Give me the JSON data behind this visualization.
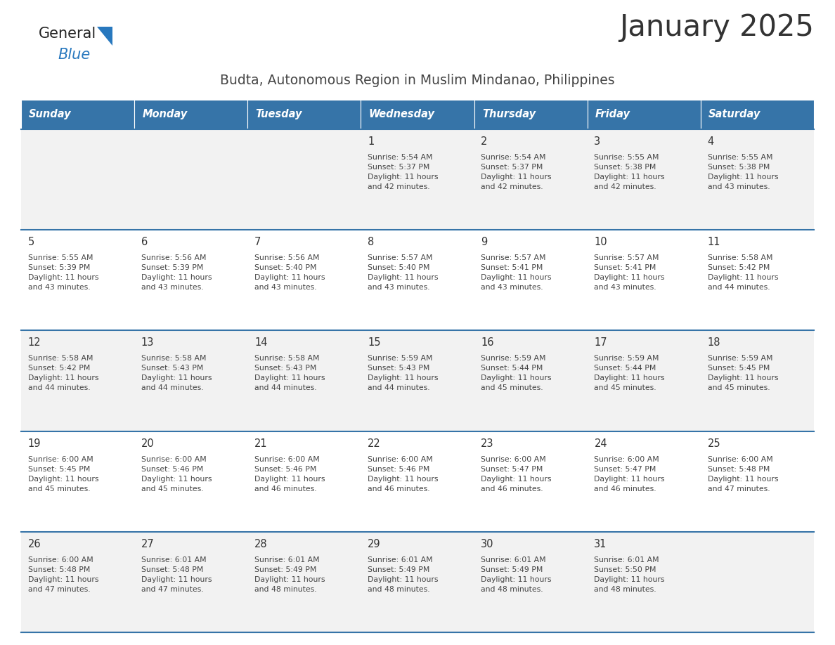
{
  "title": "January 2025",
  "subtitle": "Budta, Autonomous Region in Muslim Mindanao, Philippines",
  "header_bg_color": "#3674a8",
  "header_text_color": "#ffffff",
  "header_days": [
    "Sunday",
    "Monday",
    "Tuesday",
    "Wednesday",
    "Thursday",
    "Friday",
    "Saturday"
  ],
  "row_bg_colors": [
    "#f2f2f2",
    "#ffffff",
    "#f2f2f2",
    "#ffffff",
    "#f2f2f2"
  ],
  "cell_text_color": "#444444",
  "day_num_color": "#333333",
  "divider_color": "#3674a8",
  "logo_general_color": "#222222",
  "logo_blue_color": "#2878be",
  "background_color": "#ffffff",
  "calendar": [
    [
      {
        "day": "",
        "info": ""
      },
      {
        "day": "",
        "info": ""
      },
      {
        "day": "",
        "info": ""
      },
      {
        "day": "1",
        "info": "Sunrise: 5:54 AM\nSunset: 5:37 PM\nDaylight: 11 hours\nand 42 minutes."
      },
      {
        "day": "2",
        "info": "Sunrise: 5:54 AM\nSunset: 5:37 PM\nDaylight: 11 hours\nand 42 minutes."
      },
      {
        "day": "3",
        "info": "Sunrise: 5:55 AM\nSunset: 5:38 PM\nDaylight: 11 hours\nand 42 minutes."
      },
      {
        "day": "4",
        "info": "Sunrise: 5:55 AM\nSunset: 5:38 PM\nDaylight: 11 hours\nand 43 minutes."
      }
    ],
    [
      {
        "day": "5",
        "info": "Sunrise: 5:55 AM\nSunset: 5:39 PM\nDaylight: 11 hours\nand 43 minutes."
      },
      {
        "day": "6",
        "info": "Sunrise: 5:56 AM\nSunset: 5:39 PM\nDaylight: 11 hours\nand 43 minutes."
      },
      {
        "day": "7",
        "info": "Sunrise: 5:56 AM\nSunset: 5:40 PM\nDaylight: 11 hours\nand 43 minutes."
      },
      {
        "day": "8",
        "info": "Sunrise: 5:57 AM\nSunset: 5:40 PM\nDaylight: 11 hours\nand 43 minutes."
      },
      {
        "day": "9",
        "info": "Sunrise: 5:57 AM\nSunset: 5:41 PM\nDaylight: 11 hours\nand 43 minutes."
      },
      {
        "day": "10",
        "info": "Sunrise: 5:57 AM\nSunset: 5:41 PM\nDaylight: 11 hours\nand 43 minutes."
      },
      {
        "day": "11",
        "info": "Sunrise: 5:58 AM\nSunset: 5:42 PM\nDaylight: 11 hours\nand 44 minutes."
      }
    ],
    [
      {
        "day": "12",
        "info": "Sunrise: 5:58 AM\nSunset: 5:42 PM\nDaylight: 11 hours\nand 44 minutes."
      },
      {
        "day": "13",
        "info": "Sunrise: 5:58 AM\nSunset: 5:43 PM\nDaylight: 11 hours\nand 44 minutes."
      },
      {
        "day": "14",
        "info": "Sunrise: 5:58 AM\nSunset: 5:43 PM\nDaylight: 11 hours\nand 44 minutes."
      },
      {
        "day": "15",
        "info": "Sunrise: 5:59 AM\nSunset: 5:43 PM\nDaylight: 11 hours\nand 44 minutes."
      },
      {
        "day": "16",
        "info": "Sunrise: 5:59 AM\nSunset: 5:44 PM\nDaylight: 11 hours\nand 45 minutes."
      },
      {
        "day": "17",
        "info": "Sunrise: 5:59 AM\nSunset: 5:44 PM\nDaylight: 11 hours\nand 45 minutes."
      },
      {
        "day": "18",
        "info": "Sunrise: 5:59 AM\nSunset: 5:45 PM\nDaylight: 11 hours\nand 45 minutes."
      }
    ],
    [
      {
        "day": "19",
        "info": "Sunrise: 6:00 AM\nSunset: 5:45 PM\nDaylight: 11 hours\nand 45 minutes."
      },
      {
        "day": "20",
        "info": "Sunrise: 6:00 AM\nSunset: 5:46 PM\nDaylight: 11 hours\nand 45 minutes."
      },
      {
        "day": "21",
        "info": "Sunrise: 6:00 AM\nSunset: 5:46 PM\nDaylight: 11 hours\nand 46 minutes."
      },
      {
        "day": "22",
        "info": "Sunrise: 6:00 AM\nSunset: 5:46 PM\nDaylight: 11 hours\nand 46 minutes."
      },
      {
        "day": "23",
        "info": "Sunrise: 6:00 AM\nSunset: 5:47 PM\nDaylight: 11 hours\nand 46 minutes."
      },
      {
        "day": "24",
        "info": "Sunrise: 6:00 AM\nSunset: 5:47 PM\nDaylight: 11 hours\nand 46 minutes."
      },
      {
        "day": "25",
        "info": "Sunrise: 6:00 AM\nSunset: 5:48 PM\nDaylight: 11 hours\nand 47 minutes."
      }
    ],
    [
      {
        "day": "26",
        "info": "Sunrise: 6:00 AM\nSunset: 5:48 PM\nDaylight: 11 hours\nand 47 minutes."
      },
      {
        "day": "27",
        "info": "Sunrise: 6:01 AM\nSunset: 5:48 PM\nDaylight: 11 hours\nand 47 minutes."
      },
      {
        "day": "28",
        "info": "Sunrise: 6:01 AM\nSunset: 5:49 PM\nDaylight: 11 hours\nand 48 minutes."
      },
      {
        "day": "29",
        "info": "Sunrise: 6:01 AM\nSunset: 5:49 PM\nDaylight: 11 hours\nand 48 minutes."
      },
      {
        "day": "30",
        "info": "Sunrise: 6:01 AM\nSunset: 5:49 PM\nDaylight: 11 hours\nand 48 minutes."
      },
      {
        "day": "31",
        "info": "Sunrise: 6:01 AM\nSunset: 5:50 PM\nDaylight: 11 hours\nand 48 minutes."
      },
      {
        "day": "",
        "info": ""
      }
    ]
  ]
}
